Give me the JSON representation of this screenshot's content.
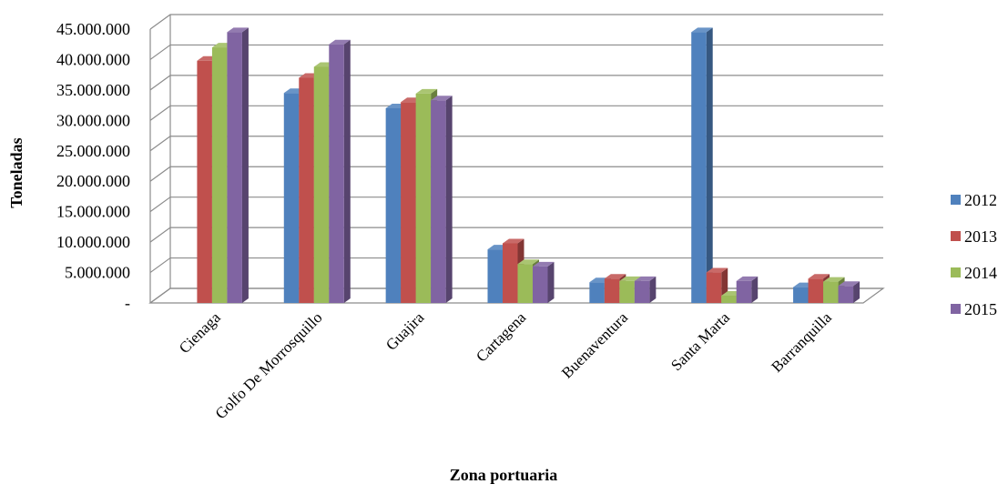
{
  "chart_data": {
    "type": "bar",
    "title": "",
    "xlabel": "Zona portuaria",
    "ylabel": "Toneladas",
    "ylim": [
      0,
      45000000
    ],
    "ytick_values": [
      0,
      5000000,
      10000000,
      15000000,
      20000000,
      25000000,
      30000000,
      35000000,
      40000000,
      45000000
    ],
    "ytick_labels": [
      "-",
      "5.000.000",
      "10.000.000",
      "15.000.000",
      "20.000.000",
      "25.000.000",
      "30.000.000",
      "35.000.000",
      "40.000.000",
      "45.000.000"
    ],
    "categories": [
      "Cienaga",
      "Golfo De Morrosquillo",
      "Guajira",
      "Cartagena",
      "Buenaventura",
      "Santa Marta",
      "Barranquilla"
    ],
    "series": [
      {
        "name": "2012",
        "color": "#4F81BD",
        "values": [
          0,
          34500000,
          32000000,
          8800000,
          3400000,
          44500000,
          2600000
        ]
      },
      {
        "name": "2013",
        "color": "#C0504D",
        "values": [
          39800000,
          37000000,
          33000000,
          9800000,
          4000000,
          5000000,
          4000000
        ]
      },
      {
        "name": "2014",
        "color": "#9BBB59",
        "values": [
          42000000,
          38800000,
          34400000,
          6400000,
          3600000,
          1200000,
          3500000
        ]
      },
      {
        "name": "2015",
        "color": "#8064A2",
        "values": [
          44500000,
          42500000,
          33300000,
          6000000,
          3600000,
          3600000,
          2800000
        ]
      }
    ],
    "grid": true,
    "legend_position": "right",
    "style": "3d-clustered-column"
  }
}
